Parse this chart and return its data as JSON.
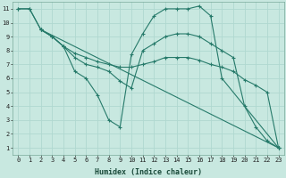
{
  "xlabel": "Humidex (Indice chaleur)",
  "bg_color": "#c8e8e0",
  "grid_color": "#b0d8d0",
  "line_color": "#267a6a",
  "xlim_min": -0.5,
  "xlim_max": 23.5,
  "ylim_min": 0.5,
  "ylim_max": 11.5,
  "xticks": [
    0,
    1,
    2,
    3,
    4,
    5,
    6,
    7,
    8,
    9,
    10,
    11,
    12,
    13,
    14,
    15,
    16,
    17,
    18,
    19,
    20,
    21,
    22,
    23
  ],
  "yticks": [
    1,
    2,
    3,
    4,
    5,
    6,
    7,
    8,
    9,
    10,
    11
  ],
  "lines": [
    {
      "x": [
        0,
        1,
        2,
        3,
        4,
        5,
        6,
        7,
        8,
        9,
        10,
        11,
        12,
        13,
        14,
        15,
        16,
        17,
        18,
        23
      ],
      "y": [
        11,
        11,
        9.5,
        9,
        8.3,
        6.5,
        6.0,
        4.8,
        3.0,
        2.5,
        7.7,
        9.2,
        10.5,
        11,
        11,
        11,
        11.2,
        10.5,
        6.0,
        1.0
      ]
    },
    {
      "x": [
        0,
        1,
        2,
        23
      ],
      "y": [
        11,
        11,
        9.5,
        1.0
      ]
    },
    {
      "x": [
        2,
        3,
        4,
        5,
        6,
        7,
        8,
        9,
        10,
        11,
        12,
        13,
        14,
        15,
        16,
        17,
        18,
        19,
        20,
        21,
        22,
        23
      ],
      "y": [
        9.5,
        9.0,
        8.3,
        7.8,
        7.5,
        7.2,
        7.0,
        6.8,
        6.8,
        7.0,
        7.2,
        7.5,
        7.5,
        7.5,
        7.3,
        7.0,
        6.8,
        6.5,
        5.9,
        5.5,
        5.0,
        1.0
      ]
    },
    {
      "x": [
        2,
        3,
        4,
        5,
        6,
        7,
        8,
        9,
        10,
        11,
        12,
        13,
        14,
        15,
        16,
        17,
        18,
        19,
        20,
        21,
        22,
        23
      ],
      "y": [
        9.5,
        9.0,
        8.3,
        7.5,
        7.0,
        6.8,
        6.5,
        5.8,
        5.3,
        8.0,
        8.5,
        9.0,
        9.2,
        9.2,
        9.0,
        8.5,
        8.0,
        7.5,
        4.0,
        2.5,
        1.5,
        1.0
      ]
    }
  ]
}
